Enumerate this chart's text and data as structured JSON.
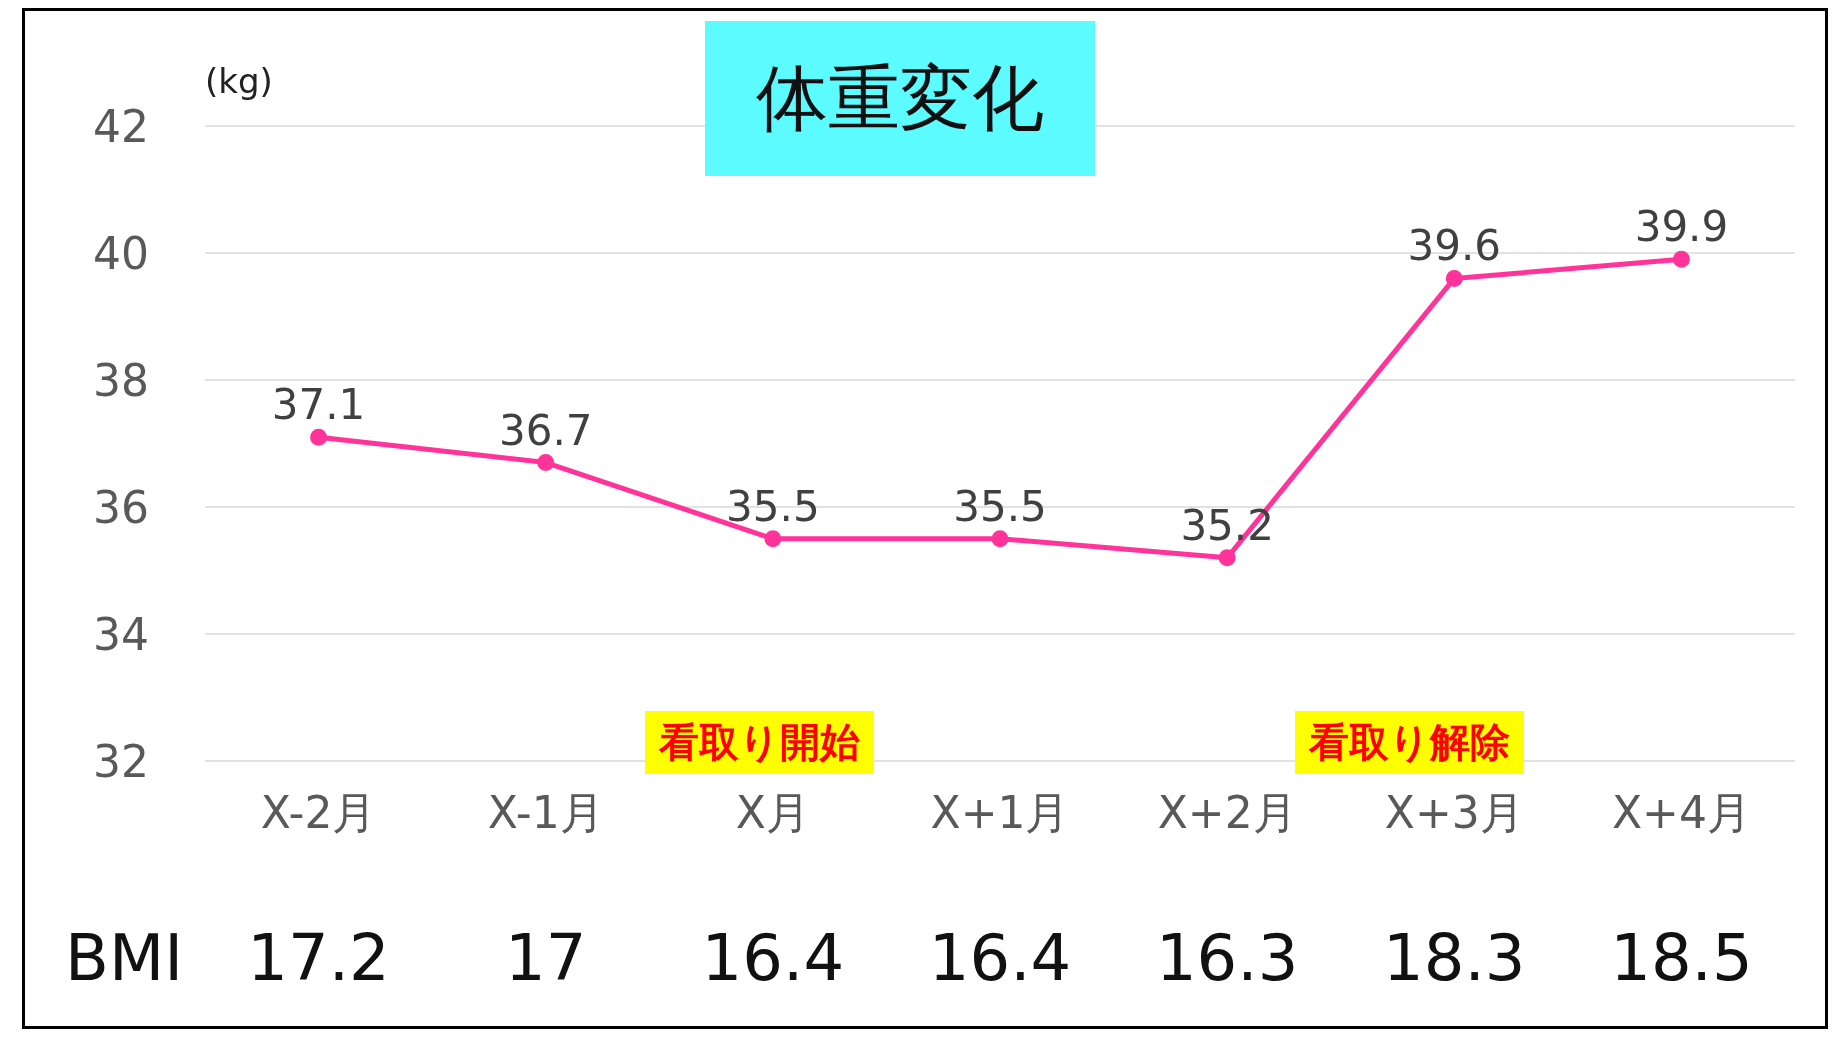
{
  "chart_data": {
    "type": "line",
    "title": "体重変化",
    "ylabel": "(kg)",
    "categories": [
      "X-2月",
      "X-1月",
      "X月",
      "X+1月",
      "X+2月",
      "X+3月",
      "X+4月"
    ],
    "series": [
      {
        "color": "#ff3399",
        "values": [
          37.1,
          36.7,
          35.5,
          35.5,
          35.2,
          39.6,
          39.9
        ]
      }
    ],
    "ylim": [
      32,
      42
    ],
    "yticks": [
      32,
      34,
      36,
      38,
      40,
      42
    ],
    "grid": "y",
    "legend": false,
    "marker": "circle",
    "line_style": "solid",
    "data_labels": true,
    "annotations": [
      "看取り開始",
      "看取り解除",
      "BMI",
      "17.2",
      "17",
      "16.4",
      "16.4",
      "16.3",
      "18.3",
      "18.5"
    ]
  }
}
